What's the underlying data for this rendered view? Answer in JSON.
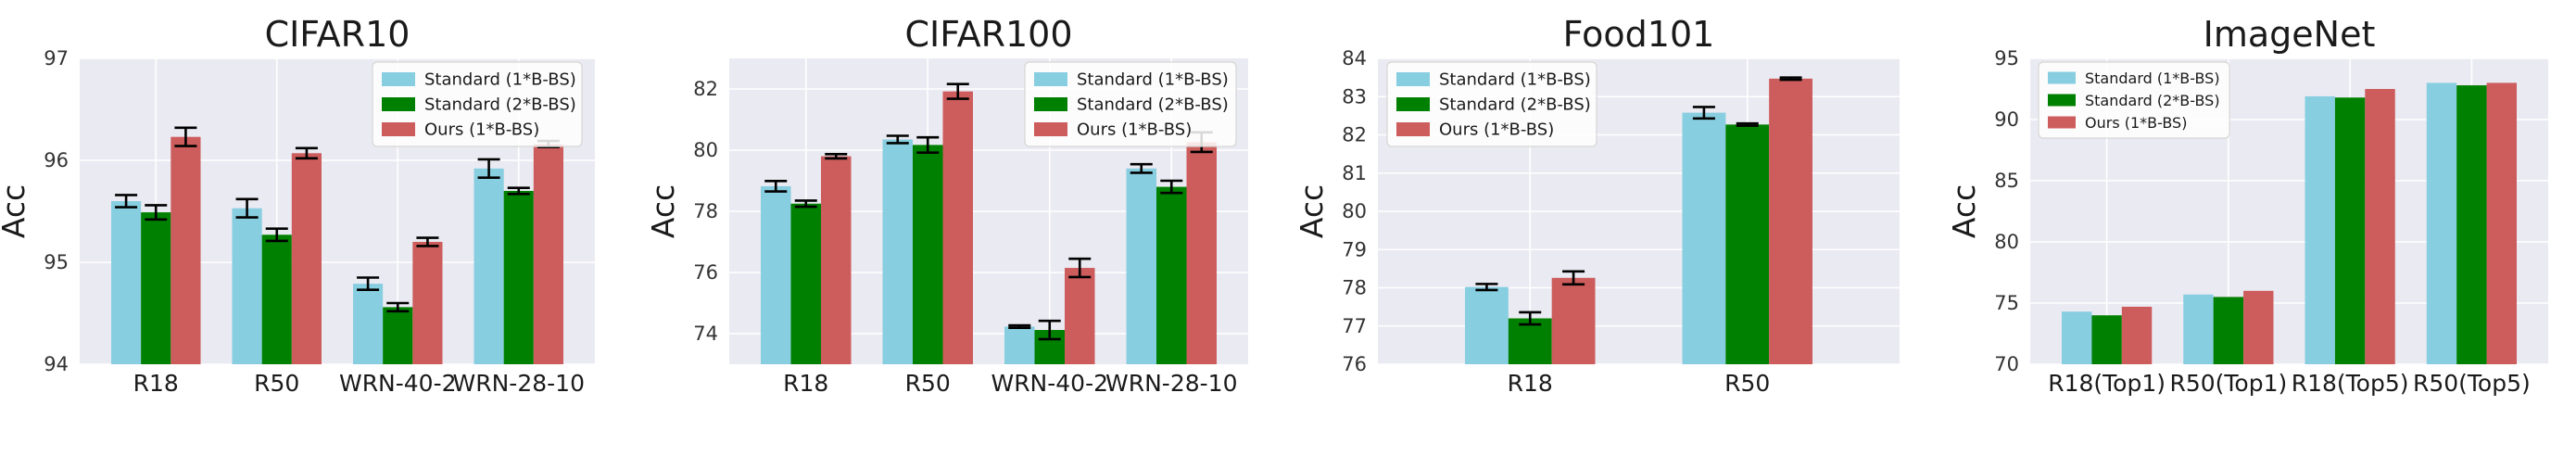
{
  "colors": {
    "standard_1": "#87CEE0",
    "standard_2": "#008000",
    "ours": "#CD5C5C",
    "plot_bg": "#EAEAF2",
    "grid": "#FFFFFF"
  },
  "chart_data": [
    {
      "type": "bar",
      "title": "CIFAR10",
      "ylabel": "Acc",
      "xlabel": "",
      "grid": true,
      "legend_position": "top-right",
      "ylim": [
        94,
        97
      ],
      "yticks": [
        94,
        95,
        96,
        97
      ],
      "categories": [
        "R18",
        "R50",
        "WRN-40-2",
        "WRN-28-10"
      ],
      "series": [
        {
          "name": "Standard (1*B-BS)",
          "values": [
            95.6,
            95.53,
            94.79,
            95.92
          ],
          "errors": [
            0.06,
            0.09,
            0.06,
            0.09
          ]
        },
        {
          "name": "Standard (2*B-BS)",
          "values": [
            95.49,
            95.27,
            94.56,
            95.7
          ],
          "errors": [
            0.07,
            0.06,
            0.04,
            0.03
          ]
        },
        {
          "name": "Ours (1*B-BS)",
          "values": [
            96.23,
            96.07,
            95.2,
            96.16
          ],
          "errors": [
            0.09,
            0.05,
            0.04,
            0.03
          ]
        }
      ]
    },
    {
      "type": "bar",
      "title": "CIFAR100",
      "ylabel": "Acc",
      "xlabel": "",
      "grid": true,
      "legend_position": "top-right",
      "ylim": [
        73,
        83
      ],
      "yticks": [
        74,
        76,
        78,
        80,
        82
      ],
      "categories": [
        "R18",
        "R50",
        "WRN-40-2",
        "WRN-28-10"
      ],
      "series": [
        {
          "name": "Standard (1*B-BS)",
          "values": [
            78.82,
            80.35,
            74.23,
            79.4
          ],
          "errors": [
            0.17,
            0.12,
            0.04,
            0.14
          ]
        },
        {
          "name": "Standard (2*B-BS)",
          "values": [
            78.25,
            80.17,
            74.12,
            78.8
          ],
          "errors": [
            0.1,
            0.25,
            0.3,
            0.2
          ]
        },
        {
          "name": "Ours (1*B-BS)",
          "values": [
            79.8,
            81.92,
            76.15,
            80.26
          ],
          "errors": [
            0.07,
            0.24,
            0.3,
            0.32
          ]
        }
      ]
    },
    {
      "type": "bar",
      "title": "Food101",
      "ylabel": "Acc",
      "xlabel": "",
      "grid": true,
      "legend_position": "top-left",
      "ylim": [
        76,
        84
      ],
      "yticks": [
        76,
        77,
        78,
        79,
        80,
        81,
        82,
        83,
        84
      ],
      "categories": [
        "R18",
        "R50"
      ],
      "series": [
        {
          "name": "Standard (1*B-BS)",
          "values": [
            78.02,
            82.58
          ],
          "errors": [
            0.08,
            0.15
          ]
        },
        {
          "name": "Standard (2*B-BS)",
          "values": [
            77.2,
            82.27
          ],
          "errors": [
            0.16,
            0.03
          ]
        },
        {
          "name": "Ours (1*B-BS)",
          "values": [
            78.26,
            83.47
          ],
          "errors": [
            0.17,
            0.03
          ]
        }
      ]
    },
    {
      "type": "bar",
      "title": "ImageNet",
      "ylabel": "Acc",
      "xlabel": "",
      "grid": true,
      "legend_position": "top-left",
      "ylim": [
        70,
        95
      ],
      "yticks": [
        70,
        75,
        80,
        85,
        90,
        95
      ],
      "categories": [
        "R18(Top1)",
        "R50(Top1)",
        "R18(Top5)",
        "R50(Top5)"
      ],
      "series": [
        {
          "name": "Standard (1*B-BS)",
          "values": [
            74.3,
            75.7,
            91.9,
            93.0
          ]
        },
        {
          "name": "Standard (2*B-BS)",
          "values": [
            74.0,
            75.5,
            91.8,
            92.8
          ]
        },
        {
          "name": "Ours (1*B-BS)",
          "values": [
            74.7,
            76.0,
            92.5,
            93.0
          ]
        }
      ]
    }
  ]
}
